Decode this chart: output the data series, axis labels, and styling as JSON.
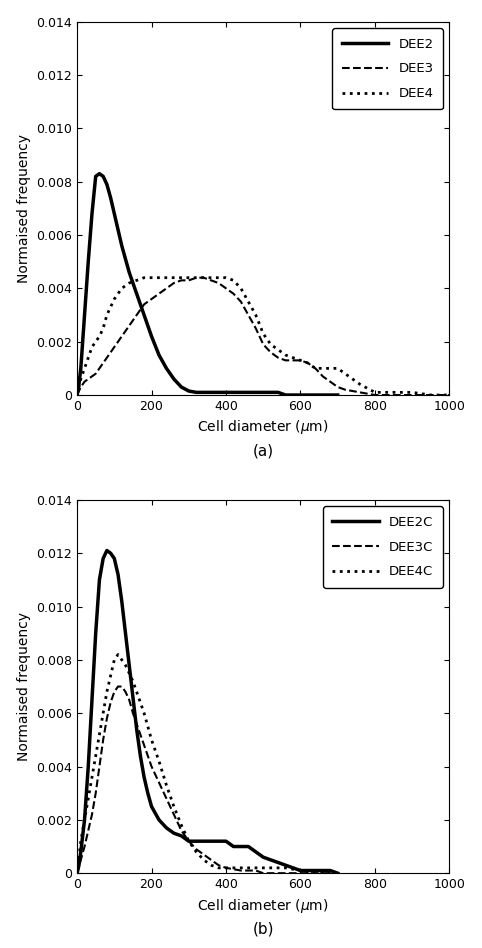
{
  "panel_a": {
    "title": "(a)",
    "ylabel": "Normaised frequency",
    "xlabel": "Cell diameter ($\\mu$m)",
    "xlim": [
      0,
      1000
    ],
    "ylim": [
      0,
      0.014
    ],
    "yticks": [
      0,
      0.002,
      0.004,
      0.006,
      0.008,
      0.01,
      0.012,
      0.014
    ],
    "xticks": [
      0,
      200,
      400,
      600,
      800,
      1000
    ],
    "series": {
      "DEE2": {
        "style": "solid",
        "linewidth": 2.5,
        "x": [
          0,
          5,
          10,
          20,
          30,
          40,
          50,
          60,
          70,
          80,
          90,
          100,
          120,
          140,
          160,
          180,
          200,
          220,
          240,
          260,
          280,
          300,
          320,
          340,
          360,
          380,
          400,
          420,
          440,
          460,
          480,
          500,
          520,
          540,
          560,
          580,
          600,
          650,
          700
        ],
        "y": [
          0.0,
          0.0004,
          0.001,
          0.003,
          0.005,
          0.0068,
          0.0082,
          0.0083,
          0.0082,
          0.0079,
          0.0074,
          0.0068,
          0.0056,
          0.0046,
          0.0038,
          0.003,
          0.0022,
          0.0015,
          0.001,
          0.0006,
          0.0003,
          0.00015,
          0.0001,
          0.0001,
          0.0001,
          0.0001,
          0.0001,
          0.0001,
          0.0001,
          0.0001,
          0.0001,
          0.0001,
          0.0001,
          0.0001,
          0.0,
          0.0,
          0.0,
          0.0,
          0.0
        ]
      },
      "DEE3": {
        "style": "dashed",
        "linewidth": 1.5,
        "x": [
          0,
          10,
          20,
          30,
          40,
          50,
          60,
          70,
          80,
          100,
          120,
          140,
          160,
          180,
          200,
          220,
          240,
          260,
          280,
          300,
          320,
          340,
          360,
          380,
          400,
          420,
          440,
          460,
          480,
          500,
          520,
          540,
          560,
          580,
          600,
          620,
          640,
          660,
          680,
          700,
          720,
          740,
          760,
          800,
          850,
          900,
          950,
          1000
        ],
        "y": [
          0.0,
          0.0003,
          0.0005,
          0.0006,
          0.0007,
          0.0008,
          0.001,
          0.0012,
          0.0014,
          0.0018,
          0.0022,
          0.0026,
          0.003,
          0.0034,
          0.0036,
          0.0038,
          0.004,
          0.0042,
          0.0043,
          0.0043,
          0.0044,
          0.0044,
          0.0043,
          0.0042,
          0.004,
          0.0038,
          0.0035,
          0.003,
          0.0025,
          0.0019,
          0.0016,
          0.0014,
          0.0013,
          0.0013,
          0.0013,
          0.0012,
          0.001,
          0.0007,
          0.0005,
          0.0003,
          0.0002,
          0.00015,
          0.0001,
          0.0,
          0.0,
          0.0,
          0.0,
          0.0
        ]
      },
      "DEE4": {
        "style": "dotted",
        "linewidth": 2.0,
        "x": [
          0,
          10,
          20,
          30,
          40,
          50,
          60,
          70,
          80,
          100,
          120,
          140,
          160,
          180,
          200,
          220,
          240,
          260,
          280,
          300,
          320,
          340,
          360,
          380,
          400,
          420,
          440,
          460,
          480,
          500,
          520,
          540,
          560,
          580,
          600,
          620,
          640,
          660,
          680,
          700,
          720,
          740,
          760,
          800,
          850,
          900,
          950,
          1000
        ],
        "y": [
          0.0,
          0.0006,
          0.001,
          0.0014,
          0.0018,
          0.002,
          0.0022,
          0.0025,
          0.003,
          0.0036,
          0.004,
          0.0042,
          0.0043,
          0.0044,
          0.0044,
          0.0044,
          0.0044,
          0.0044,
          0.0044,
          0.0044,
          0.0044,
          0.0044,
          0.0044,
          0.0044,
          0.0044,
          0.0043,
          0.004,
          0.0035,
          0.003,
          0.0023,
          0.0019,
          0.0017,
          0.0015,
          0.0014,
          0.0013,
          0.0012,
          0.001,
          0.001,
          0.001,
          0.001,
          0.0008,
          0.0006,
          0.0004,
          0.0001,
          0.0001,
          0.0001,
          0.0,
          0.0
        ]
      }
    }
  },
  "panel_b": {
    "title": "(b)",
    "ylabel": "Normaised frequency",
    "xlabel": "Cell diameter ($\\mu$m)",
    "xlim": [
      0,
      1000
    ],
    "ylim": [
      0,
      0.014
    ],
    "yticks": [
      0,
      0.002,
      0.004,
      0.006,
      0.008,
      0.01,
      0.012,
      0.014
    ],
    "xticks": [
      0,
      200,
      400,
      600,
      800,
      1000
    ],
    "series": {
      "DEE2C": {
        "style": "solid",
        "linewidth": 2.5,
        "x": [
          0,
          5,
          10,
          20,
          30,
          40,
          50,
          60,
          70,
          80,
          90,
          100,
          110,
          120,
          130,
          140,
          150,
          160,
          170,
          180,
          190,
          200,
          220,
          240,
          260,
          280,
          300,
          320,
          340,
          360,
          380,
          400,
          420,
          440,
          460,
          480,
          500,
          520,
          540,
          560,
          580,
          600,
          640,
          680,
          700
        ],
        "y": [
          0.0,
          0.0003,
          0.0008,
          0.002,
          0.004,
          0.0065,
          0.009,
          0.011,
          0.0118,
          0.0121,
          0.012,
          0.0118,
          0.0112,
          0.0102,
          0.009,
          0.0078,
          0.0066,
          0.0054,
          0.0044,
          0.0036,
          0.003,
          0.0025,
          0.002,
          0.0017,
          0.0015,
          0.0014,
          0.0012,
          0.0012,
          0.0012,
          0.0012,
          0.0012,
          0.0012,
          0.001,
          0.001,
          0.001,
          0.0008,
          0.0006,
          0.0005,
          0.0004,
          0.0003,
          0.0002,
          0.0001,
          0.0001,
          0.0001,
          0.0
        ]
      },
      "DEE3C": {
        "style": "dashed",
        "linewidth": 1.5,
        "x": [
          0,
          10,
          20,
          30,
          40,
          50,
          60,
          70,
          80,
          90,
          100,
          110,
          120,
          130,
          140,
          150,
          160,
          170,
          180,
          190,
          200,
          220,
          240,
          260,
          280,
          300,
          320,
          340,
          360,
          380,
          400,
          420,
          440,
          460,
          480,
          500,
          540,
          580,
          620,
          660,
          700
        ],
        "y": [
          0.0,
          0.0005,
          0.001,
          0.0016,
          0.0022,
          0.003,
          0.004,
          0.005,
          0.0058,
          0.0064,
          0.0068,
          0.007,
          0.007,
          0.0068,
          0.0065,
          0.006,
          0.0056,
          0.0052,
          0.0048,
          0.0044,
          0.004,
          0.0034,
          0.0028,
          0.0022,
          0.0016,
          0.0012,
          0.0009,
          0.0007,
          0.0005,
          0.0003,
          0.0002,
          0.00015,
          0.0001,
          0.0001,
          0.0001,
          0.0,
          0.0,
          0.0,
          0.0,
          0.0,
          0.0
        ]
      },
      "DEE4C": {
        "style": "dotted",
        "linewidth": 2.0,
        "x": [
          0,
          10,
          20,
          30,
          40,
          50,
          60,
          70,
          80,
          90,
          100,
          110,
          120,
          130,
          140,
          150,
          160,
          170,
          180,
          190,
          200,
          220,
          240,
          260,
          280,
          300,
          320,
          340,
          360,
          380,
          400,
          440,
          480,
          520,
          560,
          600,
          640,
          680,
          700
        ],
        "y": [
          0.0,
          0.0012,
          0.002,
          0.0028,
          0.0036,
          0.0044,
          0.0052,
          0.006,
          0.0068,
          0.0074,
          0.008,
          0.0082,
          0.008,
          0.0078,
          0.0075,
          0.0072,
          0.0068,
          0.0064,
          0.006,
          0.0055,
          0.005,
          0.0042,
          0.0033,
          0.0025,
          0.0018,
          0.0012,
          0.0008,
          0.0005,
          0.0003,
          0.0002,
          0.0002,
          0.0002,
          0.0002,
          0.0002,
          0.0002,
          0.0001,
          0.0,
          0.0,
          0.0
        ]
      }
    }
  },
  "line_color": "#000000",
  "background_color": "#ffffff"
}
